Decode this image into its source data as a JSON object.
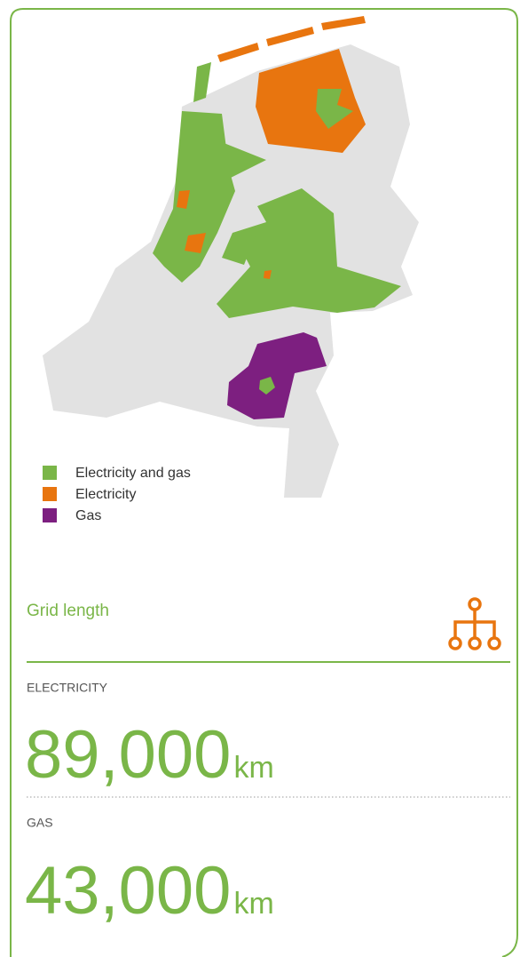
{
  "legend": [
    {
      "label": "Electricity and gas",
      "color": "#7ab648"
    },
    {
      "label": "Electricity",
      "color": "#e8750f"
    },
    {
      "label": "Gas",
      "color": "#7d1f80"
    }
  ],
  "section": {
    "title": "Grid length"
  },
  "stats": [
    {
      "label": "ELECTRICITY",
      "value": "89,000",
      "unit": "km"
    },
    {
      "label": "GAS",
      "value": "43,000",
      "unit": "km"
    }
  ]
}
